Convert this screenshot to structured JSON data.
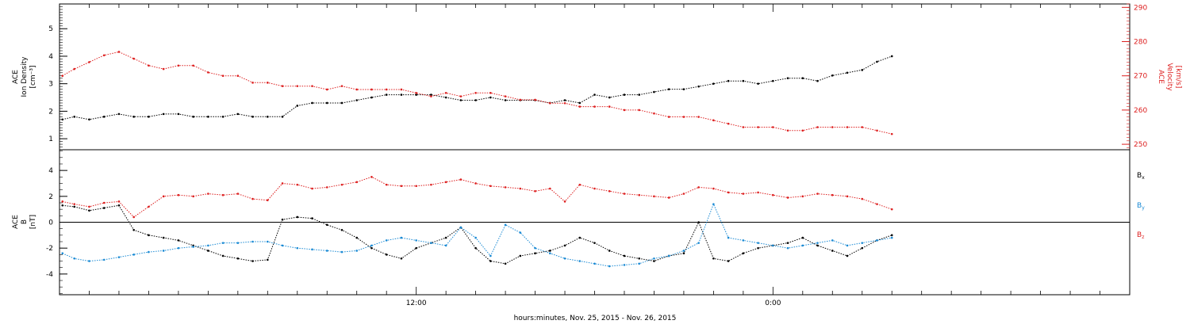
{
  "chart_data": [
    {
      "type": "scatter",
      "panel": "top",
      "ylabel_left": [
        "ACE",
        "Ion Density",
        "[cm⁻³]"
      ],
      "ylabel_right": [
        "ACE",
        "Velocity",
        "[km/s]"
      ],
      "ylim_left": [
        0.6,
        5.9
      ],
      "yticks_left": [
        1,
        2,
        3,
        4,
        5
      ],
      "ylim_right": [
        248.4,
        291
      ],
      "yticks_right": [
        250,
        260,
        270,
        280,
        290
      ],
      "grid": false,
      "series": [
        {
          "color": "#000000",
          "axis": "left",
          "x": [
            0.1,
            0.5,
            1,
            1.5,
            2,
            2.5,
            3,
            3.5,
            4,
            4.5,
            5,
            5.5,
            6,
            6.5,
            7,
            7.5,
            8,
            8.5,
            9,
            9.5,
            10,
            10.5,
            11,
            11.5,
            12,
            12.5,
            13,
            13.5,
            14,
            14.5,
            15,
            15.5,
            16,
            16.5,
            17,
            17.5,
            18,
            18.5,
            19,
            19.5,
            20,
            20.5,
            21,
            21.5,
            22,
            22.5,
            23,
            23.5,
            24,
            24.5,
            25,
            25.5,
            26,
            26.5,
            27,
            27.5,
            28
          ],
          "y": [
            1.7,
            1.8,
            1.7,
            1.8,
            1.9,
            1.8,
            1.8,
            1.9,
            1.9,
            1.8,
            1.8,
            1.8,
            1.9,
            1.8,
            1.8,
            1.8,
            2.2,
            2.3,
            2.3,
            2.3,
            2.4,
            2.5,
            2.6,
            2.6,
            2.6,
            2.6,
            2.5,
            2.4,
            2.4,
            2.5,
            2.4,
            2.4,
            2.4,
            2.3,
            2.4,
            2.3,
            2.6,
            2.5,
            2.6,
            2.6,
            2.7,
            2.8,
            2.8,
            2.9,
            3.0,
            3.1,
            3.1,
            3.0,
            3.1,
            3.2,
            3.2,
            3.1,
            3.3,
            3.4,
            3.5,
            3.8,
            4.0
          ]
        },
        {
          "color": "#dd2020",
          "axis": "right",
          "x": [
            0.1,
            0.5,
            1,
            1.5,
            2,
            2.5,
            3,
            3.5,
            4,
            4.5,
            5,
            5.5,
            6,
            6.5,
            7,
            7.5,
            8,
            8.5,
            9,
            9.5,
            10,
            10.5,
            11,
            11.5,
            12,
            12.5,
            13,
            13.5,
            14,
            14.5,
            15,
            15.5,
            16,
            16.5,
            17,
            17.5,
            18,
            18.5,
            19,
            19.5,
            20,
            20.5,
            21,
            21.5,
            22,
            22.5,
            23,
            23.5,
            24,
            24.5,
            25,
            25.5,
            26,
            26.5,
            27,
            27.5,
            28
          ],
          "y": [
            270,
            272,
            274,
            276,
            277,
            275,
            273,
            272,
            273,
            273,
            271,
            270,
            270,
            268,
            268,
            267,
            267,
            267,
            266,
            267,
            266,
            266,
            266,
            266,
            265,
            264,
            265,
            264,
            265,
            265,
            264,
            263,
            263,
            262,
            262,
            261,
            261,
            261,
            260,
            260,
            259,
            258,
            258,
            258,
            257,
            256,
            255,
            255,
            255,
            254,
            254,
            255,
            255,
            255,
            255,
            254,
            253
          ]
        }
      ]
    },
    {
      "type": "scatter",
      "panel": "bottom",
      "ylabel": [
        "ACE",
        "B",
        "[nT]"
      ],
      "ylim": [
        -5.6,
        5.6
      ],
      "yticks": [
        -4,
        -2,
        0,
        2,
        4
      ],
      "xlabel": "hours:minutes, Nov. 25, 2015 - Nov. 26, 2015",
      "xlim": [
        0,
        36
      ],
      "xticks": [
        12,
        24
      ],
      "xtick_labels": [
        "12:00",
        "0:00"
      ],
      "grid": false,
      "legend": "right",
      "series": [
        {
          "name": "Bx",
          "color": "#000000",
          "x": [
            0.1,
            0.5,
            1,
            1.5,
            2,
            2.5,
            3,
            3.5,
            4,
            4.5,
            5,
            5.5,
            6,
            6.5,
            7,
            7.5,
            8,
            8.5,
            9,
            9.5,
            10,
            10.5,
            11,
            11.5,
            12,
            12.5,
            13,
            13.5,
            14,
            14.5,
            15,
            15.5,
            16,
            16.5,
            17,
            17.5,
            18,
            18.5,
            19,
            19.5,
            20,
            20.5,
            21,
            21.5,
            22,
            22.5,
            23,
            23.5,
            24,
            24.5,
            25,
            25.5,
            26,
            26.5,
            27,
            27.5,
            28
          ],
          "y": [
            1.3,
            1.2,
            0.9,
            1.1,
            1.3,
            -0.6,
            -1.0,
            -1.2,
            -1.4,
            -1.8,
            -2.2,
            -2.6,
            -2.8,
            -3.0,
            -2.9,
            0.2,
            0.4,
            0.3,
            -0.2,
            -0.6,
            -1.2,
            -2.0,
            -2.5,
            -2.8,
            -2.0,
            -1.6,
            -1.2,
            -0.4,
            -2.0,
            -3.0,
            -3.2,
            -2.6,
            -2.4,
            -2.2,
            -1.8,
            -1.2,
            -1.6,
            -2.2,
            -2.6,
            -2.8,
            -3.0,
            -2.6,
            -2.4,
            0.0,
            -2.8,
            -3.0,
            -2.4,
            -2.0,
            -1.8,
            -1.6,
            -1.2,
            -1.8,
            -2.2,
            -2.6,
            -2.0,
            -1.4,
            -1.0
          ]
        },
        {
          "name": "By",
          "color": "#1a8ad4",
          "x": [
            0.1,
            0.5,
            1,
            1.5,
            2,
            2.5,
            3,
            3.5,
            4,
            4.5,
            5,
            5.5,
            6,
            6.5,
            7,
            7.5,
            8,
            8.5,
            9,
            9.5,
            10,
            10.5,
            11,
            11.5,
            12,
            12.5,
            13,
            13.5,
            14,
            14.5,
            15,
            15.5,
            16,
            16.5,
            17,
            17.5,
            18,
            18.5,
            19,
            19.5,
            20,
            20.5,
            21,
            21.5,
            22,
            22.5,
            23,
            23.5,
            24,
            24.5,
            25,
            25.5,
            26,
            26.5,
            27,
            27.5,
            28
          ],
          "y": [
            -2.4,
            -2.8,
            -3.0,
            -2.9,
            -2.7,
            -2.5,
            -2.3,
            -2.2,
            -2.0,
            -1.9,
            -1.8,
            -1.6,
            -1.6,
            -1.5,
            -1.5,
            -1.8,
            -2.0,
            -2.1,
            -2.2,
            -2.3,
            -2.2,
            -1.8,
            -1.4,
            -1.2,
            -1.4,
            -1.6,
            -1.8,
            -0.4,
            -1.2,
            -2.6,
            -0.2,
            -0.8,
            -2.0,
            -2.4,
            -2.8,
            -3.0,
            -3.2,
            -3.4,
            -3.3,
            -3.2,
            -2.8,
            -2.6,
            -2.2,
            -1.6,
            1.4,
            -1.2,
            -1.4,
            -1.6,
            -1.8,
            -2.0,
            -1.8,
            -1.6,
            -1.4,
            -1.8,
            -1.6,
            -1.4,
            -1.2
          ]
        },
        {
          "name": "Bz",
          "color": "#dd2020",
          "x": [
            0.1,
            0.5,
            1,
            1.5,
            2,
            2.5,
            3,
            3.5,
            4,
            4.5,
            5,
            5.5,
            6,
            6.5,
            7,
            7.5,
            8,
            8.5,
            9,
            9.5,
            10,
            10.5,
            11,
            11.5,
            12,
            12.5,
            13,
            13.5,
            14,
            14.5,
            15,
            15.5,
            16,
            16.5,
            17,
            17.5,
            18,
            18.5,
            19,
            19.5,
            20,
            20.5,
            21,
            21.5,
            22,
            22.5,
            23,
            23.5,
            24,
            24.5,
            25,
            25.5,
            26,
            26.5,
            27,
            27.5,
            28
          ],
          "y": [
            1.6,
            1.4,
            1.2,
            1.5,
            1.6,
            0.4,
            1.2,
            2.0,
            2.1,
            2.0,
            2.2,
            2.1,
            2.2,
            1.8,
            1.7,
            3.0,
            2.9,
            2.6,
            2.7,
            2.9,
            3.1,
            3.5,
            2.9,
            2.8,
            2.8,
            2.9,
            3.1,
            3.3,
            3.0,
            2.8,
            2.7,
            2.6,
            2.4,
            2.6,
            1.6,
            2.9,
            2.6,
            2.4,
            2.2,
            2.1,
            2.0,
            1.9,
            2.2,
            2.7,
            2.6,
            2.3,
            2.2,
            2.3,
            2.1,
            1.9,
            2.0,
            2.2,
            2.1,
            2.0,
            1.8,
            1.4,
            1.0
          ]
        }
      ]
    }
  ],
  "legend_bottom": [
    {
      "letter": "B",
      "sub": "x",
      "color": "#000000"
    },
    {
      "letter": "B",
      "sub": "y",
      "color": "#1a8ad4"
    },
    {
      "letter": "B",
      "sub": "z",
      "color": "#dd2020"
    }
  ]
}
